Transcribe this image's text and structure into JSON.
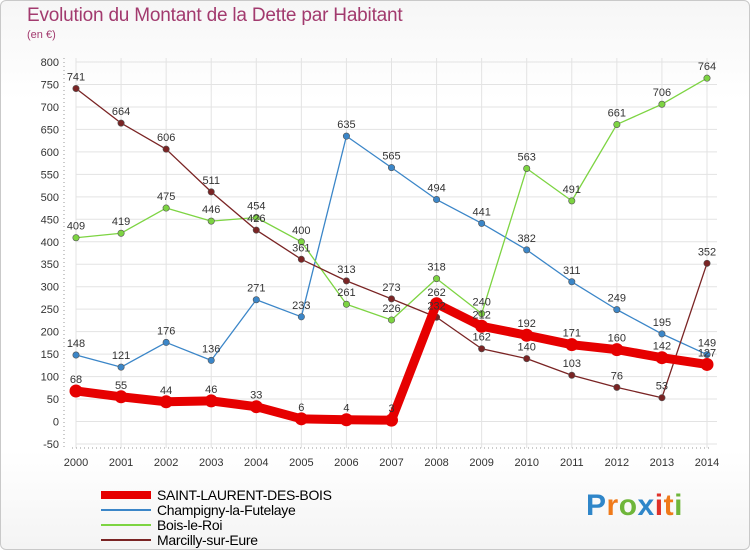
{
  "colors": {
    "title": "#a23a6e",
    "axis_text": "#333333",
    "grid": "#e3e3e3",
    "axis": "#9a9a9a",
    "logo": [
      "#2f86c9",
      "#f07a1a",
      "#6fb63a",
      "#2f86c9",
      "#e0312a",
      "#f07a1a",
      "#6fb63a"
    ]
  },
  "chart_data": {
    "type": "line",
    "title": "Evolution du Montant de la Dette par Habitant",
    "subtitle": "(en €)",
    "x": [
      "2000",
      "2001",
      "2002",
      "2003",
      "2004",
      "2005",
      "2006",
      "2007",
      "2008",
      "2009",
      "2010",
      "2011",
      "2012",
      "2013",
      "2014"
    ],
    "yticks": [
      -50,
      0,
      50,
      100,
      150,
      200,
      250,
      300,
      350,
      400,
      450,
      500,
      550,
      600,
      650,
      700,
      750,
      800
    ],
    "ylim": [
      -50,
      800
    ],
    "grid": true,
    "series": [
      {
        "name": "SAINT-LAURENT-DES-BOIS",
        "color": "#e60000",
        "width": "thick",
        "values": [
          68,
          55,
          44,
          46,
          33,
          6,
          4,
          3,
          262,
          212,
          192,
          171,
          160,
          142,
          127
        ],
        "labels": [
          "68",
          "55",
          "44",
          "46",
          "33",
          "6",
          "4",
          "3",
          "262",
          "212",
          "192",
          "171",
          "160",
          "142",
          "127"
        ]
      },
      {
        "name": "Champigny-la-Futelaye",
        "color": "#3b86c8",
        "width": "thin",
        "values": [
          148,
          121,
          176,
          136,
          271,
          233,
          635,
          565,
          494,
          441,
          382,
          311,
          249,
          195,
          149
        ],
        "labels": [
          "148",
          "121",
          "176",
          "136",
          "271",
          "233",
          "635",
          "565",
          "494",
          "441",
          "382",
          "311",
          "249",
          "195",
          "149"
        ]
      },
      {
        "name": "Bois-le-Roi",
        "color": "#7dd442",
        "width": "thin",
        "values": [
          409,
          419,
          475,
          446,
          454,
          400,
          261,
          226,
          318,
          240,
          563,
          491,
          661,
          706,
          764
        ],
        "labels": [
          "409",
          "419",
          "475",
          "446",
          "454",
          "400",
          "261",
          "226",
          "318",
          "240",
          "563",
          "491",
          "661",
          "706",
          "764"
        ]
      },
      {
        "name": "Marcilly-sur-Eure",
        "color": "#7a2424",
        "width": "thin",
        "values": [
          741,
          664,
          606,
          511,
          426,
          361,
          313,
          273,
          232,
          162,
          140,
          103,
          76,
          53,
          352
        ],
        "labels": [
          "741",
          "664",
          "606",
          "511",
          "426",
          "361",
          "313",
          "273",
          "232",
          "162",
          "140",
          "103",
          "76",
          "53",
          "352"
        ]
      }
    ]
  },
  "legend": {
    "items": [
      {
        "label": "SAINT-LAURENT-DES-BOIS"
      },
      {
        "label": "Champigny-la-Futelaye"
      },
      {
        "label": "Bois-le-Roi"
      },
      {
        "label": "Marcilly-sur-Eure"
      }
    ]
  },
  "logo": {
    "text": "Proxiti"
  }
}
